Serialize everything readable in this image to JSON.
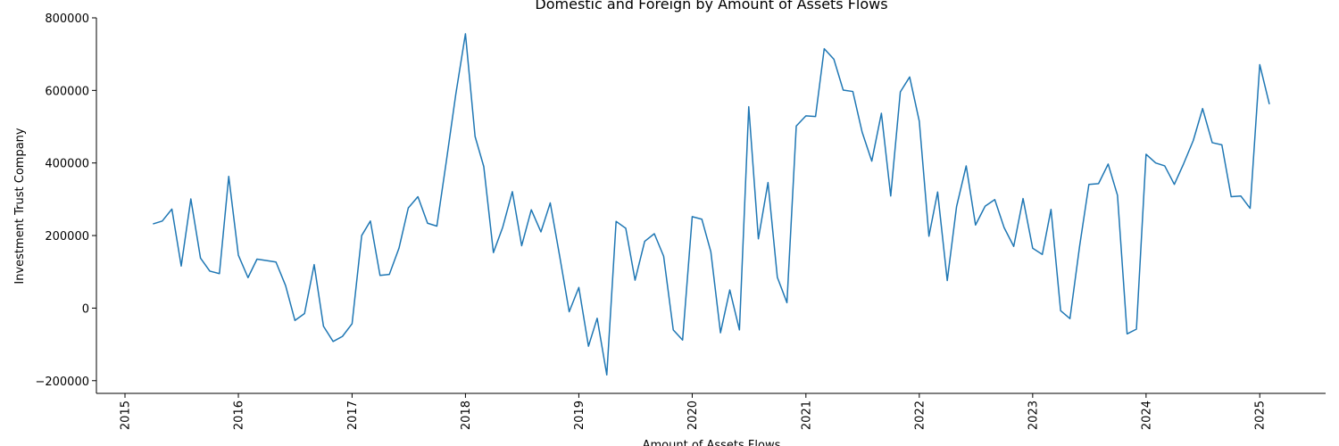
{
  "chart_data": {
    "type": "line",
    "title": "Domestic and Foreign by Amount of Assets Flows",
    "xlabel": "Amount of Assets Flows",
    "ylabel": "Investment Trust Company",
    "x_axis_type": "date",
    "xlim": [
      "2014-10-01",
      "2025-08-01"
    ],
    "ylim": [
      -235000,
      800000
    ],
    "y_ticks": [
      -200000,
      0,
      200000,
      400000,
      600000,
      800000
    ],
    "y_tick_labels": [
      "−200000",
      "0",
      "200000",
      "400000",
      "600000",
      "800000"
    ],
    "x_ticks": [
      "2015-01-01",
      "2016-01-01",
      "2017-01-01",
      "2018-01-01",
      "2019-01-01",
      "2020-01-01",
      "2021-01-01",
      "2022-01-01",
      "2023-01-01",
      "2024-01-01",
      "2025-01-01"
    ],
    "x_tick_labels": [
      "2015",
      "2016",
      "2017",
      "2018",
      "2019",
      "2020",
      "2021",
      "2022",
      "2023",
      "2024",
      "2025"
    ],
    "grid": false,
    "legend": "none",
    "series": [
      {
        "color": "#1f77b4",
        "points": [
          [
            "2015-04-01",
            232000
          ],
          [
            "2015-05-01",
            240000
          ],
          [
            "2015-06-01",
            273000
          ],
          [
            "2015-07-01",
            116000
          ],
          [
            "2015-08-01",
            301000
          ],
          [
            "2015-09-01",
            138000
          ],
          [
            "2015-10-01",
            102000
          ],
          [
            "2015-11-01",
            95000
          ],
          [
            "2015-12-01",
            363000
          ],
          [
            "2016-01-01",
            146000
          ],
          [
            "2016-02-01",
            84000
          ],
          [
            "2016-03-01",
            135000
          ],
          [
            "2016-04-01",
            131000
          ],
          [
            "2016-05-01",
            127000
          ],
          [
            "2016-06-01",
            62000
          ],
          [
            "2016-07-01",
            -34000
          ],
          [
            "2016-08-01",
            -15000
          ],
          [
            "2016-09-01",
            120000
          ],
          [
            "2016-10-01",
            -50000
          ],
          [
            "2016-11-01",
            -92000
          ],
          [
            "2016-12-01",
            -78000
          ],
          [
            "2017-01-01",
            -43000
          ],
          [
            "2017-02-01",
            200000
          ],
          [
            "2017-03-01",
            240000
          ],
          [
            "2017-04-01",
            90000
          ],
          [
            "2017-05-01",
            93000
          ],
          [
            "2017-06-01",
            165000
          ],
          [
            "2017-07-01",
            276000
          ],
          [
            "2017-08-01",
            307000
          ],
          [
            "2017-09-01",
            234000
          ],
          [
            "2017-10-01",
            226000
          ],
          [
            "2017-11-01",
            408000
          ],
          [
            "2017-12-01",
            590000
          ],
          [
            "2018-01-01",
            756000
          ],
          [
            "2018-02-01",
            473000
          ],
          [
            "2018-03-01",
            390000
          ],
          [
            "2018-04-01",
            153000
          ],
          [
            "2018-05-01",
            223000
          ],
          [
            "2018-06-01",
            321000
          ],
          [
            "2018-07-01",
            172000
          ],
          [
            "2018-08-01",
            271000
          ],
          [
            "2018-09-01",
            210000
          ],
          [
            "2018-10-01",
            290000
          ],
          [
            "2018-11-01",
            140000
          ],
          [
            "2018-12-01",
            -10000
          ],
          [
            "2019-01-01",
            57000
          ],
          [
            "2019-02-01",
            -105000
          ],
          [
            "2019-03-01",
            -28000
          ],
          [
            "2019-04-01",
            -184000
          ],
          [
            "2019-05-01",
            239000
          ],
          [
            "2019-06-01",
            220000
          ],
          [
            "2019-07-01",
            77000
          ],
          [
            "2019-08-01",
            184000
          ],
          [
            "2019-09-01",
            205000
          ],
          [
            "2019-10-01",
            143000
          ],
          [
            "2019-11-01",
            -60000
          ],
          [
            "2019-12-01",
            -88000
          ],
          [
            "2020-01-01",
            252000
          ],
          [
            "2020-02-01",
            245000
          ],
          [
            "2020-03-01",
            155000
          ],
          [
            "2020-04-01",
            -68000
          ],
          [
            "2020-05-01",
            50000
          ],
          [
            "2020-06-01",
            -60000
          ],
          [
            "2020-07-01",
            555000
          ],
          [
            "2020-08-01",
            191000
          ],
          [
            "2020-09-01",
            346000
          ],
          [
            "2020-10-01",
            85000
          ],
          [
            "2020-11-01",
            15000
          ],
          [
            "2020-12-01",
            502000
          ],
          [
            "2021-01-01",
            530000
          ],
          [
            "2021-02-01",
            528000
          ],
          [
            "2021-03-01",
            715000
          ],
          [
            "2021-04-01",
            686000
          ],
          [
            "2021-05-01",
            601000
          ],
          [
            "2021-06-01",
            597000
          ],
          [
            "2021-07-01",
            485000
          ],
          [
            "2021-08-01",
            405000
          ],
          [
            "2021-09-01",
            537000
          ],
          [
            "2021-10-01",
            309000
          ],
          [
            "2021-11-01",
            596000
          ],
          [
            "2021-12-01",
            637000
          ],
          [
            "2022-01-01",
            515000
          ],
          [
            "2022-02-01",
            198000
          ],
          [
            "2022-03-01",
            320000
          ],
          [
            "2022-04-01",
            76000
          ],
          [
            "2022-05-01",
            280000
          ],
          [
            "2022-06-01",
            392000
          ],
          [
            "2022-07-01",
            229000
          ],
          [
            "2022-08-01",
            281000
          ],
          [
            "2022-09-01",
            299000
          ],
          [
            "2022-10-01",
            222000
          ],
          [
            "2022-11-01",
            170000
          ],
          [
            "2022-12-01",
            302000
          ],
          [
            "2023-01-01",
            165000
          ],
          [
            "2023-02-01",
            148000
          ],
          [
            "2023-03-01",
            272000
          ],
          [
            "2023-04-01",
            -7000
          ],
          [
            "2023-05-01",
            -29000
          ],
          [
            "2023-06-01",
            170000
          ],
          [
            "2023-07-01",
            341000
          ],
          [
            "2023-08-01",
            343000
          ],
          [
            "2023-09-01",
            397000
          ],
          [
            "2023-10-01",
            311000
          ],
          [
            "2023-11-01",
            -71000
          ],
          [
            "2023-12-01",
            -58000
          ],
          [
            "2024-01-01",
            424000
          ],
          [
            "2024-02-01",
            400000
          ],
          [
            "2024-03-01",
            392000
          ],
          [
            "2024-04-01",
            341000
          ],
          [
            "2024-05-01",
            398000
          ],
          [
            "2024-06-01",
            462000
          ],
          [
            "2024-07-01",
            550000
          ],
          [
            "2024-08-01",
            456000
          ],
          [
            "2024-09-01",
            450000
          ],
          [
            "2024-10-01",
            307000
          ],
          [
            "2024-11-01",
            309000
          ],
          [
            "2024-12-01",
            275000
          ],
          [
            "2025-01-01",
            671000
          ],
          [
            "2025-02-01",
            562000
          ]
        ]
      }
    ]
  }
}
